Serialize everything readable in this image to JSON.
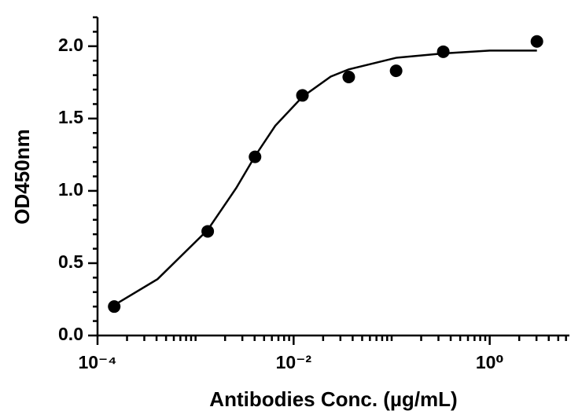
{
  "chart_data": {
    "type": "scatter",
    "x_label": "Antibodies Conc. (µg/mL)",
    "y_label": "OD450nm",
    "xscale": "log",
    "color": "#000000",
    "points": {
      "x": [
        0.000148,
        0.00133,
        0.00404,
        0.0123,
        0.0365,
        0.111,
        0.336,
        3.03
      ],
      "values": [
        0.2,
        0.72,
        1.235,
        1.66,
        1.787,
        1.83,
        1.962,
        2.033
      ]
    },
    "fit": {
      "x": [
        0.000148,
        0.00041,
        0.00133,
        0.0026,
        0.00404,
        0.0065,
        0.0123,
        0.0239,
        0.0365,
        0.111,
        0.336,
        1.0,
        3.03
      ],
      "values": [
        0.21,
        0.39,
        0.73,
        1.02,
        1.24,
        1.45,
        1.65,
        1.79,
        1.84,
        1.92,
        1.95,
        1.97,
        1.97
      ]
    },
    "xlim": [
      0.0001,
      6.5
    ],
    "xticks": [
      {
        "value": 0.0001,
        "label": "10⁻⁴"
      },
      {
        "value": 0.01,
        "label": "10⁻²"
      },
      {
        "value": 1,
        "label": "10⁰"
      }
    ],
    "xminorticks": [
      0.0002,
      0.0003,
      0.0004,
      0.0005,
      0.0006,
      0.0007,
      0.0008,
      0.0009,
      0.001,
      0.002,
      0.003,
      0.004,
      0.005,
      0.006,
      0.007,
      0.008,
      0.009,
      0.02,
      0.03,
      0.04,
      0.05,
      0.06,
      0.07,
      0.08,
      0.09,
      0.1,
      0.2,
      0.3,
      0.4,
      0.5,
      0.6,
      0.7,
      0.8,
      0.9,
      2,
      3,
      4,
      5,
      6
    ],
    "ylim": [
      0,
      2.2
    ],
    "yticks": [
      {
        "value": 0,
        "label": "0.0"
      },
      0.5,
      {
        "value": 1,
        "label": "1.0"
      },
      1.5,
      {
        "value": 2,
        "label": "2.0"
      }
    ],
    "yminorticks": [
      0.1,
      0.2,
      0.3,
      0.4,
      0.6,
      0.7,
      0.8,
      0.9,
      1.1,
      1.2,
      1.3,
      1.4,
      1.6,
      1.7,
      1.8,
      1.9,
      2.1,
      2.2
    ]
  }
}
